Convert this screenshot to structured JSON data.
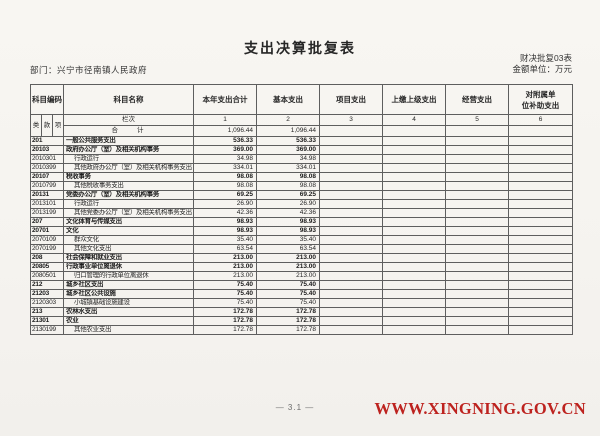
{
  "page": {
    "title": "支出决算批复表",
    "department": "部门：兴宁市径南镇人民政府",
    "form_code": "财决批复03表",
    "unit": "金额单位：万元",
    "page_number": "— 3.1 —",
    "watermark": "WWW.XINGNING.GOV.CN"
  },
  "colors": {
    "watermark_red": "#bd231f"
  },
  "table": {
    "header": {
      "code": "科目编码",
      "code_sub": [
        "类",
        "款",
        "项"
      ],
      "name": "科目名称",
      "lanci": "栏次",
      "columns": [
        "本年支出合计",
        "基本支出",
        "项目支出",
        "上缴上级支出",
        "经营支出"
      ],
      "col6_lines": [
        "对附属单",
        "位补助支出"
      ],
      "column_numbers": [
        "1",
        "2",
        "3",
        "4",
        "5",
        "6"
      ]
    },
    "total_row": {
      "name": "合　　计",
      "values": [
        "1,096.44",
        "1,096.44",
        "",
        "",
        "",
        ""
      ]
    },
    "rows": [
      {
        "code": "201",
        "name": "一般公共服务支出",
        "bold": true,
        "indent": false,
        "values": [
          "536.33",
          "536.33",
          "",
          "",
          "",
          ""
        ]
      },
      {
        "code": "20103",
        "name": "政府办公厅（室）及相关机构事务",
        "bold": true,
        "indent": false,
        "values": [
          "369.00",
          "369.00",
          "",
          "",
          "",
          ""
        ]
      },
      {
        "code": "2010301",
        "name": "行政运行",
        "bold": false,
        "indent": true,
        "values": [
          "34.98",
          "34.98",
          "",
          "",
          "",
          ""
        ]
      },
      {
        "code": "2010399",
        "name": "其他政府办公厅（室）及相关机构事务支出",
        "bold": false,
        "indent": true,
        "values": [
          "334.01",
          "334.01",
          "",
          "",
          "",
          ""
        ]
      },
      {
        "code": "20107",
        "name": "税收事务",
        "bold": true,
        "indent": false,
        "values": [
          "98.08",
          "98.08",
          "",
          "",
          "",
          ""
        ]
      },
      {
        "code": "2010799",
        "name": "其他税收事务支出",
        "bold": false,
        "indent": true,
        "values": [
          "98.08",
          "98.08",
          "",
          "",
          "",
          ""
        ]
      },
      {
        "code": "20131",
        "name": "党委办公厅（室）及相关机构事务",
        "bold": true,
        "indent": false,
        "values": [
          "69.25",
          "69.25",
          "",
          "",
          "",
          ""
        ]
      },
      {
        "code": "2013101",
        "name": "行政运行",
        "bold": false,
        "indent": true,
        "values": [
          "26.90",
          "26.90",
          "",
          "",
          "",
          ""
        ]
      },
      {
        "code": "2013199",
        "name": "其他党委办公厅（室）及相关机构事务支出",
        "bold": false,
        "indent": true,
        "values": [
          "42.36",
          "42.36",
          "",
          "",
          "",
          ""
        ]
      },
      {
        "code": "207",
        "name": "文化体育与传媒支出",
        "bold": true,
        "indent": false,
        "values": [
          "98.93",
          "98.93",
          "",
          "",
          "",
          ""
        ]
      },
      {
        "code": "20701",
        "name": "文化",
        "bold": true,
        "indent": false,
        "values": [
          "98.93",
          "98.93",
          "",
          "",
          "",
          ""
        ]
      },
      {
        "code": "2070109",
        "name": "群众文化",
        "bold": false,
        "indent": true,
        "values": [
          "35.40",
          "35.40",
          "",
          "",
          "",
          ""
        ]
      },
      {
        "code": "2070199",
        "name": "其他文化支出",
        "bold": false,
        "indent": true,
        "values": [
          "63.54",
          "63.54",
          "",
          "",
          "",
          ""
        ]
      },
      {
        "code": "208",
        "name": "社会保障和就业支出",
        "bold": true,
        "indent": false,
        "values": [
          "213.00",
          "213.00",
          "",
          "",
          "",
          ""
        ]
      },
      {
        "code": "20805",
        "name": "行政事业单位离退休",
        "bold": true,
        "indent": false,
        "values": [
          "213.00",
          "213.00",
          "",
          "",
          "",
          ""
        ]
      },
      {
        "code": "2080501",
        "name": "归口管理的行政单位离退休",
        "bold": false,
        "indent": true,
        "values": [
          "213.00",
          "213.00",
          "",
          "",
          "",
          ""
        ]
      },
      {
        "code": "212",
        "name": "城乡社区支出",
        "bold": true,
        "indent": false,
        "values": [
          "75.40",
          "75.40",
          "",
          "",
          "",
          ""
        ]
      },
      {
        "code": "21203",
        "name": "城乡社区公共设施",
        "bold": true,
        "indent": false,
        "values": [
          "75.40",
          "75.40",
          "",
          "",
          "",
          ""
        ]
      },
      {
        "code": "2120303",
        "name": "小城镇基础设施建设",
        "bold": false,
        "indent": true,
        "values": [
          "75.40",
          "75.40",
          "",
          "",
          "",
          ""
        ]
      },
      {
        "code": "213",
        "name": "农林水支出",
        "bold": true,
        "indent": false,
        "values": [
          "172.78",
          "172.78",
          "",
          "",
          "",
          ""
        ]
      },
      {
        "code": "21301",
        "name": "农业",
        "bold": true,
        "indent": false,
        "values": [
          "172.78",
          "172.78",
          "",
          "",
          "",
          ""
        ]
      },
      {
        "code": "2130199",
        "name": "其他农业支出",
        "bold": false,
        "indent": true,
        "values": [
          "172.78",
          "172.78",
          "",
          "",
          "",
          ""
        ]
      }
    ]
  }
}
